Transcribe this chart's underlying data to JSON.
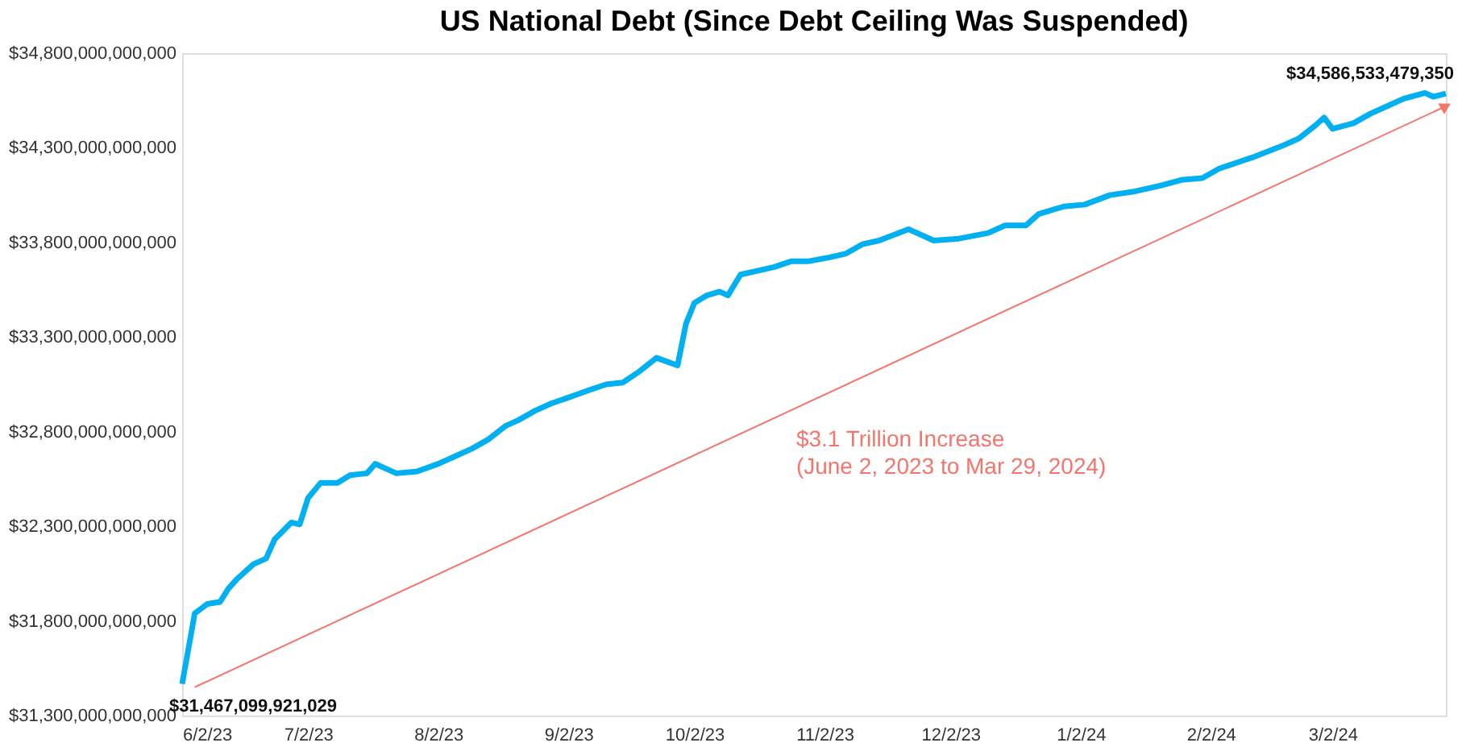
{
  "chart_data": {
    "type": "line",
    "title": "US National Debt (Since Debt Ceiling Was Suspended)",
    "x": [
      "2023-06-02",
      "2023-06-05",
      "2023-06-08",
      "2023-06-11",
      "2023-06-13",
      "2023-06-15",
      "2023-06-19",
      "2023-06-22",
      "2023-06-24",
      "2023-06-28",
      "2023-06-30",
      "2023-07-02",
      "2023-07-05",
      "2023-07-09",
      "2023-07-12",
      "2023-07-16",
      "2023-07-18",
      "2023-07-23",
      "2023-07-28",
      "2023-08-02",
      "2023-08-06",
      "2023-08-10",
      "2023-08-14",
      "2023-08-18",
      "2023-08-21",
      "2023-08-25",
      "2023-08-29",
      "2023-09-02",
      "2023-09-07",
      "2023-09-11",
      "2023-09-15",
      "2023-09-17",
      "2023-09-19",
      "2023-09-23",
      "2023-09-28",
      "2023-09-30",
      "2023-10-02",
      "2023-10-05",
      "2023-10-08",
      "2023-10-10",
      "2023-10-13",
      "2023-10-17",
      "2023-10-21",
      "2023-10-25",
      "2023-10-29",
      "2023-11-03",
      "2023-11-07",
      "2023-11-11",
      "2023-11-15",
      "2023-11-22",
      "2023-11-28",
      "2023-12-04",
      "2023-12-11",
      "2023-12-15",
      "2023-12-20",
      "2023-12-23",
      "2023-12-29",
      "2024-01-03",
      "2024-01-09",
      "2024-01-15",
      "2024-01-21",
      "2024-01-26",
      "2024-01-31",
      "2024-02-04",
      "2024-02-08",
      "2024-02-12",
      "2024-02-19",
      "2024-02-23",
      "2024-02-27",
      "2024-02-29",
      "2024-03-02",
      "2024-03-07",
      "2024-03-11",
      "2024-03-15",
      "2024-03-19",
      "2024-03-24",
      "2024-03-26",
      "2024-03-29"
    ],
    "series": [
      {
        "color": "#00b0f0",
        "values": [
          31467099921029,
          31840000000000,
          31890000000000,
          31900000000000,
          31970000000000,
          32020000000000,
          32100000000000,
          32130000000000,
          32230000000000,
          32320000000000,
          32310000000000,
          32450000000000,
          32530000000000,
          32530000000000,
          32570000000000,
          32580000000000,
          32630000000000,
          32580000000000,
          32590000000000,
          32630000000000,
          32670000000000,
          32710000000000,
          32760000000000,
          32830000000000,
          32860000000000,
          32910000000000,
          32950000000000,
          32980000000000,
          33020000000000,
          33050000000000,
          33060000000000,
          33090000000000,
          33120000000000,
          33190000000000,
          33150000000000,
          33370000000000,
          33480000000000,
          33520000000000,
          33540000000000,
          33520000000000,
          33630000000000,
          33650000000000,
          33670000000000,
          33700000000000,
          33700000000000,
          33720000000000,
          33740000000000,
          33790000000000,
          33810000000000,
          33870000000000,
          33810000000000,
          33820000000000,
          33850000000000,
          33890000000000,
          33890000000000,
          33950000000000,
          33990000000000,
          34000000000000,
          34050000000000,
          34070000000000,
          34100000000000,
          34130000000000,
          34140000000000,
          34190000000000,
          34220000000000,
          34250000000000,
          34310000000000,
          34350000000000,
          34420000000000,
          34460000000000,
          34400000000000,
          34430000000000,
          34480000000000,
          34520000000000,
          34560000000000,
          34590000000000,
          34570000000000,
          34586533479350
        ]
      },
      {
        "type": "line",
        "color": "#f4756b",
        "x": [
          "2023-06-05",
          "2024-03-29"
        ],
        "values": [
          31450000000000,
          34520000000000
        ],
        "marker": "triangle"
      }
    ],
    "ylim": [
      31300000000000,
      34800000000000
    ],
    "yticks": [
      {
        "value": 31300000000000,
        "label": "$31,300,000,000,000"
      },
      {
        "value": 31800000000000,
        "label": "$31,800,000,000,000"
      },
      {
        "value": 32300000000000,
        "label": "$32,300,000,000,000"
      },
      {
        "value": 32800000000000,
        "label": "$32,800,000,000,000"
      },
      {
        "value": 33300000000000,
        "label": "$33,300,000,000,000"
      },
      {
        "value": 33800000000000,
        "label": "$33,800,000,000,000"
      },
      {
        "value": 34300000000000,
        "label": "$34,300,000,000,000"
      },
      {
        "value": 34800000000000,
        "label": "$34,800,000,000,000"
      }
    ],
    "xlim": [
      "2023-06-02",
      "2024-03-29"
    ],
    "xticks": [
      {
        "value": "2023-06-02",
        "label": "6/2/23"
      },
      {
        "value": "2023-07-02",
        "label": "7/2/23"
      },
      {
        "value": "2023-08-02",
        "label": "8/2/23"
      },
      {
        "value": "2023-09-02",
        "label": "9/2/23"
      },
      {
        "value": "2023-10-02",
        "label": "10/2/23"
      },
      {
        "value": "2023-11-02",
        "label": "11/2/23"
      },
      {
        "value": "2023-12-02",
        "label": "12/2/23"
      },
      {
        "value": "2024-01-02",
        "label": "1/2/24"
      },
      {
        "value": "2024-02-02",
        "label": "2/2/24"
      },
      {
        "value": "2024-03-02",
        "label": "3/2/24"
      }
    ],
    "annotations": [
      {
        "text": "$31,467,099,921,029",
        "x": "2023-06-02",
        "y": 31467099921029
      },
      {
        "text": "$34,586,533,479,350",
        "x": "2024-03-29",
        "y": 34586533479350
      },
      "$3.1 Trillion Increase\n(June 2, 2023 to Mar 29, 2024)"
    ],
    "grid": false
  }
}
